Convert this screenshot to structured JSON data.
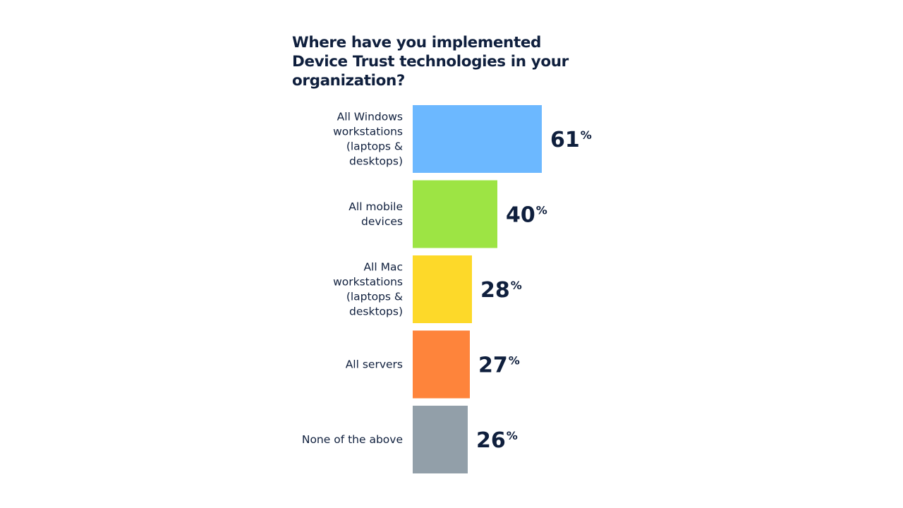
{
  "chart_data": {
    "type": "bar",
    "orientation": "horizontal",
    "title": "Where have you implemented Device Trust technologies in your organization?",
    "categories": [
      [
        "All Windows",
        "workstations",
        "(laptops &",
        "desktops)"
      ],
      [
        "All mobile",
        "devices"
      ],
      [
        "All Mac",
        "workstations",
        "(laptops &",
        "desktops)"
      ],
      [
        "All servers"
      ],
      [
        "None of the above"
      ]
    ],
    "values": [
      61,
      40,
      28,
      27,
      26
    ],
    "value_suffix": "%",
    "colors": [
      "#6cb8ff",
      "#9de444",
      "#fdd929",
      "#fe843b",
      "#929fa9"
    ],
    "xlim": [
      0,
      100
    ],
    "grid": false,
    "legend": "none"
  }
}
